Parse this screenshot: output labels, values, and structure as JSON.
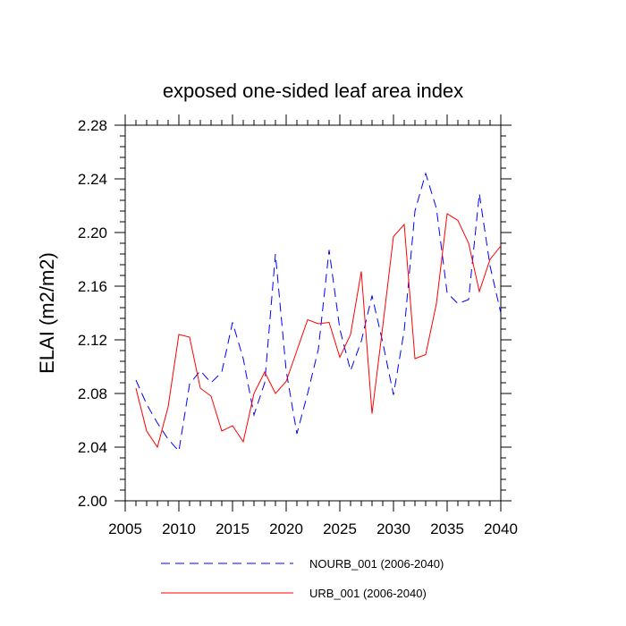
{
  "chart_data": {
    "type": "line",
    "title": "exposed one-sided leaf area index",
    "xlabel": "",
    "ylabel": "ELAI  (m2/m2)",
    "xlim": [
      2005,
      2040
    ],
    "ylim": [
      2.0,
      2.28
    ],
    "x_ticks": [
      2005,
      2010,
      2015,
      2020,
      2025,
      2030,
      2035,
      2040
    ],
    "y_ticks": [
      "2.00",
      "2.04",
      "2.08",
      "2.12",
      "2.16",
      "2.20",
      "2.24",
      "2.28"
    ],
    "x": [
      2006,
      2007,
      2008,
      2009,
      2010,
      2011,
      2012,
      2013,
      2014,
      2015,
      2016,
      2017,
      2018,
      2019,
      2020,
      2021,
      2022,
      2023,
      2024,
      2025,
      2026,
      2027,
      2028,
      2029,
      2030,
      2031,
      2032,
      2033,
      2034,
      2035,
      2036,
      2037,
      2038,
      2039,
      2040
    ],
    "series": [
      {
        "name": "NOURB_001 (2006-2040)",
        "color": "#0000ff",
        "dash": "dashed",
        "values": [
          2.09,
          2.072,
          2.058,
          2.046,
          2.037,
          2.087,
          2.097,
          2.088,
          2.096,
          2.133,
          2.106,
          2.064,
          2.088,
          2.184,
          2.097,
          2.05,
          2.08,
          2.113,
          2.187,
          2.128,
          2.097,
          2.119,
          2.153,
          2.118,
          2.079,
          2.127,
          2.216,
          2.244,
          2.218,
          2.155,
          2.147,
          2.15,
          2.229,
          2.175,
          2.14
        ]
      },
      {
        "name": "URB_001 (2006-2040)",
        "color": "#ff0000",
        "dash": "solid",
        "values": [
          2.084,
          2.052,
          2.04,
          2.07,
          2.124,
          2.122,
          2.084,
          2.078,
          2.052,
          2.056,
          2.044,
          2.08,
          2.096,
          2.08,
          2.089,
          2.112,
          2.135,
          2.132,
          2.133,
          2.107,
          2.124,
          2.171,
          2.065,
          2.13,
          2.197,
          2.206,
          2.106,
          2.109,
          2.147,
          2.214,
          2.209,
          2.192,
          2.156,
          2.18,
          2.19
        ]
      }
    ],
    "legend_position": "bottom",
    "grid": false
  }
}
